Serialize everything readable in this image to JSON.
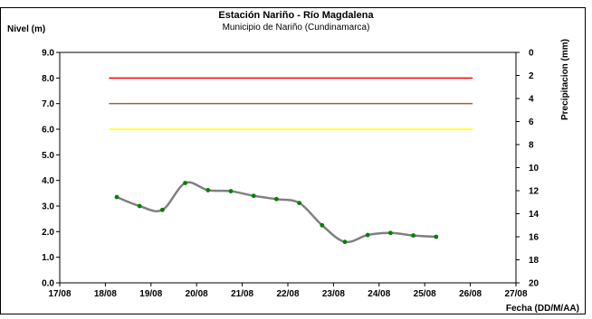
{
  "chart_data": {
    "type": "line",
    "title": "Estación Nariño  - Río Magdalena",
    "subtitle": "Municipio de Nariño (Cundinamarca)",
    "ylabel": "Nivel (m)",
    "y2label": "Precipitacion (mm)",
    "xlabel": "Fecha (DD/M/AA)",
    "x_ticks": [
      "17/08",
      "18/08",
      "19/08",
      "20/08",
      "21/08",
      "22/08",
      "23/08",
      "24/08",
      "25/08",
      "26/08",
      "27/08"
    ],
    "ylim": [
      0,
      9
    ],
    "y_ticks": [
      "0.0",
      "1.0",
      "2.0",
      "3.0",
      "4.0",
      "5.0",
      "6.0",
      "7.0",
      "8.0",
      "9.0"
    ],
    "y2lim": [
      0,
      20
    ],
    "y2_reversed": true,
    "y2_ticks": [
      "0",
      "2",
      "4",
      "6",
      "8",
      "10",
      "12",
      "14",
      "16",
      "18",
      "20"
    ],
    "grid": false,
    "reference_lines": [
      {
        "y": 8.0,
        "x_start": 1.08,
        "x_end": 9.05,
        "color": "#ff0000"
      },
      {
        "y": 7.0,
        "x_start": 1.08,
        "x_end": 9.05,
        "color": "#996633"
      },
      {
        "y": 6.0,
        "x_start": 1.08,
        "x_end": 9.05,
        "color": "#ffff00"
      }
    ],
    "series": [
      {
        "line_color": "#808080",
        "marker_color": "#008000",
        "x": [
          1.25,
          1.75,
          2.25,
          2.75,
          3.25,
          3.75,
          4.25,
          4.75,
          5.25,
          5.75,
          6.25,
          6.75,
          7.25,
          7.75,
          8.25
        ],
        "y": [
          3.35,
          3.0,
          2.85,
          3.9,
          3.62,
          3.58,
          3.4,
          3.27,
          3.12,
          2.25,
          1.6,
          1.87,
          1.95,
          1.85,
          1.8
        ]
      }
    ]
  }
}
